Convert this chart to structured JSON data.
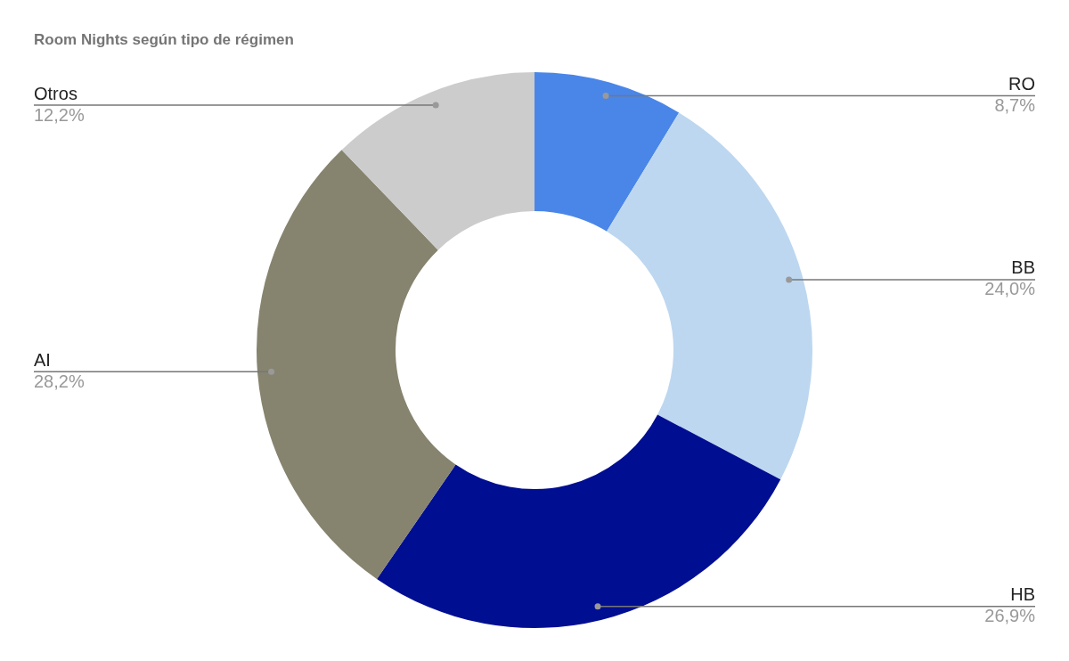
{
  "chart_data": {
    "type": "donut",
    "title": "Room Nights según tipo de régimen",
    "categories": [
      "RO",
      "BB",
      "HB",
      "AI",
      "Otros"
    ],
    "values": [
      8.7,
      24.0,
      26.9,
      28.2,
      12.2
    ],
    "colors": [
      "#4a86e8",
      "#bdd7f0",
      "#000e91",
      "#86836f",
      "#cccccc"
    ],
    "value_labels": [
      "8,7%",
      "24,0%",
      "26,9%",
      "28,2%",
      "12,2%"
    ],
    "legend": false
  }
}
